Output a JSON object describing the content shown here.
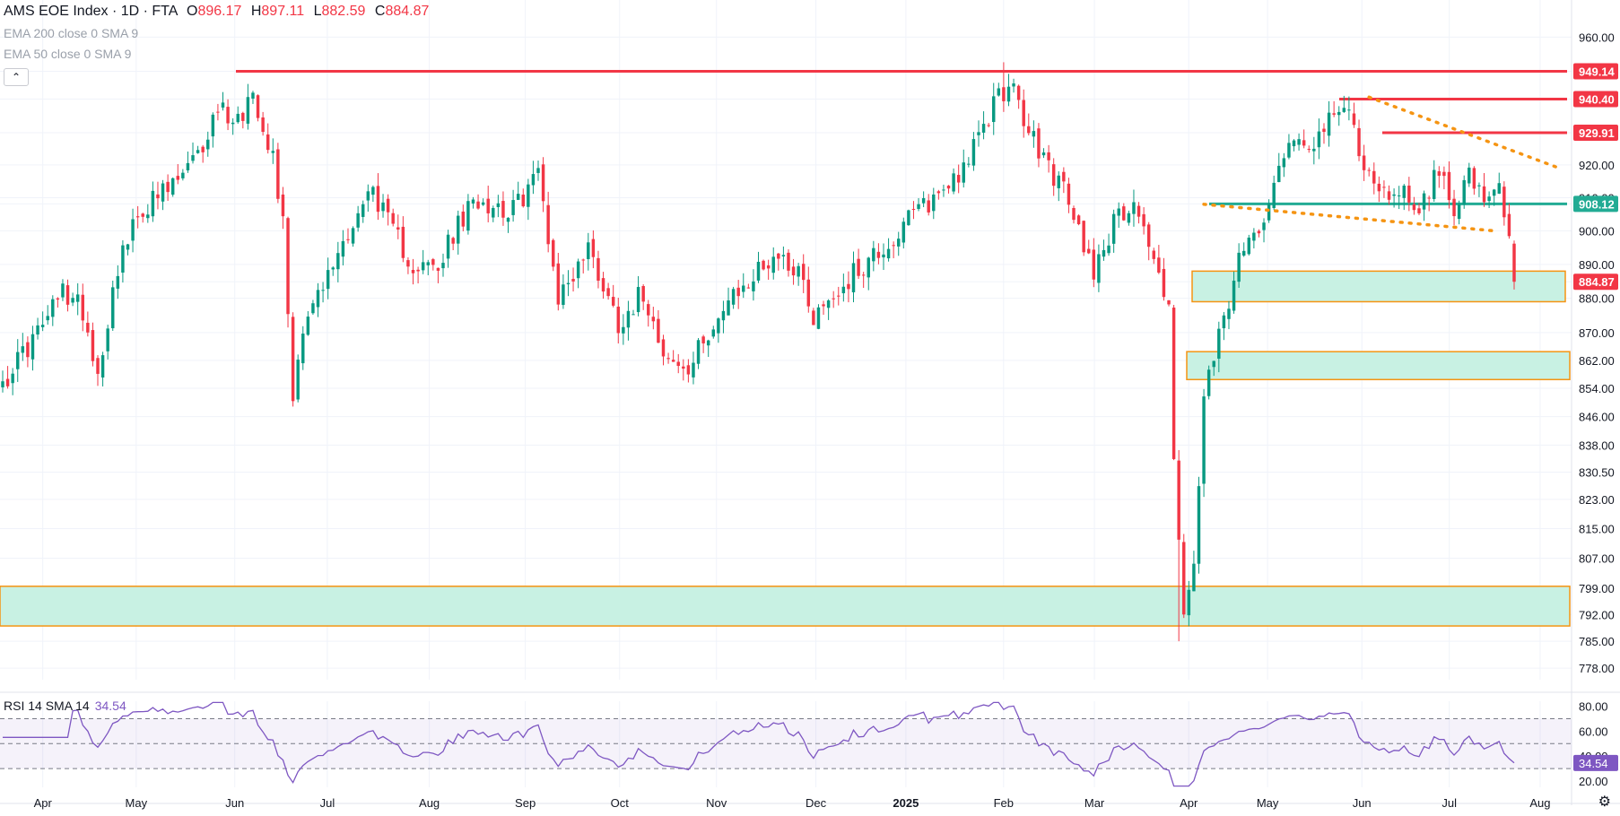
{
  "header": {
    "title": "AMS EOE Index · 1D · FTA",
    "open_label": "O",
    "open": "896.17",
    "high_label": "H",
    "high": "897.11",
    "low_label": "L",
    "low": "882.59",
    "close_label": "C",
    "close": "884.87"
  },
  "indicators": [
    "EMA 200 close 0 SMA 9",
    "EMA 50 close 0 SMA 9"
  ],
  "collapse_icon": "chevron-up-icon",
  "rsi_legend": {
    "label": "RSI 14 SMA 14",
    "value": "34.54"
  },
  "settings_icon": "gear-icon",
  "chart_data": [
    {
      "type": "candlestick",
      "title": "AMS EOE Index · 1D · FTA",
      "x_tick_labels": [
        "Apr",
        "May",
        "Jun",
        "Jul",
        "Aug",
        "Sep",
        "Oct",
        "Nov",
        "Dec",
        "2025",
        "Feb",
        "Mar",
        "Apr",
        "May",
        "Jun",
        "Jul",
        "Aug"
      ],
      "y_tick_labels": [
        "960.00",
        "949.14",
        "940.40",
        "929.91",
        "920.00",
        "910.00",
        "908.12",
        "900.00",
        "890.00",
        "884.87",
        "880.00",
        "870.00",
        "862.00",
        "854.00",
        "846.00",
        "838.00",
        "830.50",
        "823.00",
        "815.00",
        "807.00",
        "799.00",
        "792.00",
        "785.00",
        "778.00"
      ],
      "ylim": [
        775,
        965
      ],
      "scale": "log",
      "anchors": [
        [
          0,
          856
        ],
        [
          8,
          872
        ],
        [
          12,
          882
        ],
        [
          16,
          877
        ],
        [
          19,
          858
        ],
        [
          23,
          890
        ],
        [
          28,
          907
        ],
        [
          33,
          912
        ],
        [
          39,
          922
        ],
        [
          43,
          938
        ],
        [
          47,
          934
        ],
        [
          50,
          943
        ],
        [
          54,
          923
        ],
        [
          56,
          902
        ],
        [
          58,
          852
        ],
        [
          60,
          873
        ],
        [
          64,
          883
        ],
        [
          69,
          900
        ],
        [
          74,
          913
        ],
        [
          77,
          902
        ],
        [
          82,
          890
        ],
        [
          87,
          888
        ],
        [
          90,
          899
        ],
        [
          95,
          910
        ],
        [
          102,
          906
        ],
        [
          107,
          918
        ],
        [
          111,
          880
        ],
        [
          117,
          895
        ],
        [
          123,
          873
        ],
        [
          128,
          882
        ],
        [
          133,
          862
        ],
        [
          137,
          858
        ],
        [
          141,
          871
        ],
        [
          148,
          883
        ],
        [
          154,
          893
        ],
        [
          159,
          889
        ],
        [
          162,
          875
        ],
        [
          168,
          884
        ],
        [
          174,
          893
        ],
        [
          178,
          897
        ],
        [
          182,
          905
        ],
        [
          187,
          911
        ],
        [
          192,
          920
        ],
        [
          196,
          930
        ],
        [
          199,
          944
        ],
        [
          202,
          942
        ],
        [
          205,
          930
        ],
        [
          208,
          922
        ],
        [
          212,
          912
        ],
        [
          216,
          896
        ],
        [
          218,
          889
        ],
        [
          222,
          902
        ],
        [
          226,
          910
        ],
        [
          229,
          896
        ],
        [
          231,
          886
        ],
        [
          233,
          880
        ],
        [
          234,
          835
        ],
        [
          235,
          811
        ],
        [
          236,
          790
        ],
        [
          238,
          805
        ],
        [
          240,
          850
        ],
        [
          243,
          868
        ],
        [
          247,
          890
        ],
        [
          252,
          906
        ],
        [
          256,
          925
        ],
        [
          259,
          928
        ],
        [
          262,
          928
        ],
        [
          266,
          934
        ],
        [
          269,
          938
        ],
        [
          271,
          925
        ],
        [
          275,
          910
        ],
        [
          279,
          913
        ],
        [
          283,
          907
        ],
        [
          287,
          918
        ],
        [
          290,
          908
        ],
        [
          293,
          917
        ],
        [
          296,
          907
        ],
        [
          299,
          912
        ],
        [
          301,
          896
        ],
        [
          302,
          884
        ]
      ],
      "ohlc_last": {
        "open": 896.17,
        "high": 897.11,
        "low": 882.59,
        "close": 884.87
      },
      "horizontal_levels": [
        {
          "price": 949.14,
          "label": "949.14",
          "color": "#f23645"
        },
        {
          "price": 940.4,
          "label": "940.40",
          "color": "#f23645"
        },
        {
          "price": 929.91,
          "label": "929.91",
          "color": "#f23645"
        },
        {
          "price": 908.12,
          "label": "908.12",
          "color": "#22ab94"
        },
        {
          "price": 884.87,
          "label": "884.87",
          "color": "#f23645"
        }
      ],
      "zones": [
        {
          "from": 879,
          "to": 888,
          "color": "#c8f1e3",
          "border": "#f59412"
        },
        {
          "from": 856.5,
          "to": 864.5,
          "color": "#c8f1e3",
          "border": "#f59412"
        },
        {
          "from": 789,
          "to": 799.5,
          "color": "#c8f1e3",
          "border": "#f59412"
        }
      ],
      "trendlines": [
        {
          "from": [
            273,
            941
          ],
          "to": [
            311,
            919
          ],
          "style": "dotted",
          "color": "#f59412"
        },
        {
          "from": [
            240,
            908
          ],
          "to": [
            298,
            900
          ],
          "style": "dotted",
          "color": "#f59412"
        }
      ],
      "colors": {
        "up": "#089981",
        "down": "#f23645"
      }
    },
    {
      "type": "line",
      "title": "RSI 14 SMA 14",
      "y_tick_labels": [
        "80.00",
        "60.00",
        "40.00",
        "34.54",
        "20.00"
      ],
      "ylim": [
        15,
        84
      ],
      "bands": [
        70,
        50,
        30
      ],
      "color": "#7e57c2",
      "last_value": 34.54
    }
  ]
}
